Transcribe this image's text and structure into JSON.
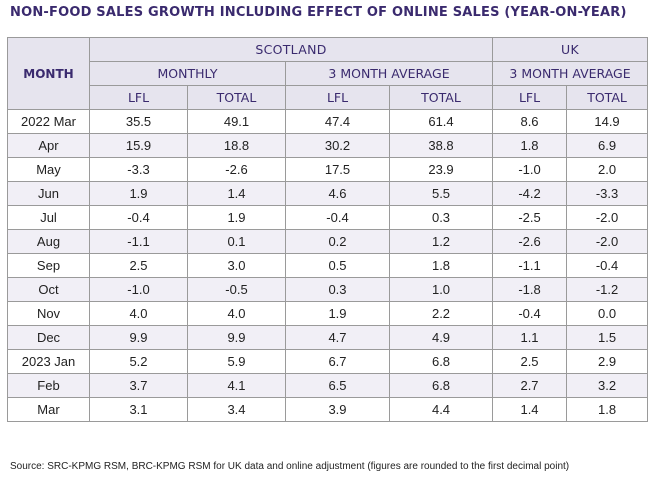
{
  "title": "NON-FOOD SALES GROWTH INCLUDING EFFECT OF ONLINE SALES (YEAR-ON-YEAR)",
  "header": {
    "month": "MONTH",
    "scotland": "SCOTLAND",
    "uk": "UK",
    "monthly": "MONTHLY",
    "three_month_avg_scotland": "3 MONTH AVERAGE",
    "three_month_avg_uk": "3 MONTH AVERAGE",
    "lfl": "LFL",
    "total": "TOTAL"
  },
  "rows": [
    {
      "month": "2022 Mar",
      "values": [
        "35.5",
        "49.1",
        "47.4",
        "61.4",
        "8.6",
        "14.9"
      ]
    },
    {
      "month": "Apr",
      "values": [
        "15.9",
        "18.8",
        "30.2",
        "38.8",
        "1.8",
        "6.9"
      ]
    },
    {
      "month": "May",
      "values": [
        "-3.3",
        "-2.6",
        "17.5",
        "23.9",
        "-1.0",
        "2.0"
      ]
    },
    {
      "month": "Jun",
      "values": [
        "1.9",
        "1.4",
        "4.6",
        "5.5",
        "-4.2",
        "-3.3"
      ]
    },
    {
      "month": "Jul",
      "values": [
        "-0.4",
        "1.9",
        "-0.4",
        "0.3",
        "-2.5",
        "-2.0"
      ]
    },
    {
      "month": "Aug",
      "values": [
        "-1.1",
        "0.1",
        "0.2",
        "1.2",
        "-2.6",
        "-2.0"
      ]
    },
    {
      "month": "Sep",
      "values": [
        "2.5",
        "3.0",
        "0.5",
        "1.8",
        "-1.1",
        "-0.4"
      ]
    },
    {
      "month": "Oct",
      "values": [
        "-1.0",
        "-0.5",
        "0.3",
        "1.0",
        "-1.8",
        "-1.2"
      ]
    },
    {
      "month": "Nov",
      "values": [
        "4.0",
        "4.0",
        "1.9",
        "2.2",
        "-0.4",
        "0.0"
      ]
    },
    {
      "month": "Dec",
      "values": [
        "9.9",
        "9.9",
        "4.7",
        "4.9",
        "1.1",
        "1.5"
      ]
    },
    {
      "month": "2023 Jan",
      "values": [
        "5.2",
        "5.9",
        "6.7",
        "6.8",
        "2.5",
        "2.9"
      ]
    },
    {
      "month": "Feb",
      "values": [
        "3.7",
        "4.1",
        "6.5",
        "6.8",
        "2.7",
        "3.2"
      ]
    },
    {
      "month": "Mar",
      "values": [
        "3.1",
        "3.4",
        "3.9",
        "4.4",
        "1.4",
        "1.8"
      ]
    }
  ],
  "source": "Source: SRC-KPMG RSM, BRC-KPMG RSM for UK data and online adjustment (figures are rounded to the first decimal point)"
}
